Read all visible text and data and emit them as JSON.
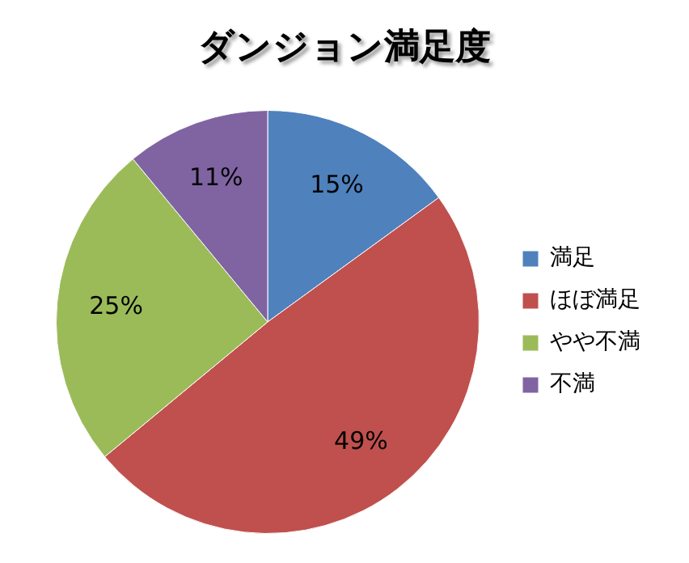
{
  "chart_data": {
    "type": "pie",
    "title": "ダンジョン満足度",
    "categories": [
      "満足",
      "ほぼ満足",
      "やや不満",
      "不満"
    ],
    "values": [
      15,
      49,
      25,
      11
    ],
    "colors": [
      "#4f81bd",
      "#c0504d",
      "#9bbb59",
      "#8064a2"
    ],
    "value_labels": [
      "15%",
      "49%",
      "25%",
      "11%"
    ],
    "legend": "right"
  }
}
